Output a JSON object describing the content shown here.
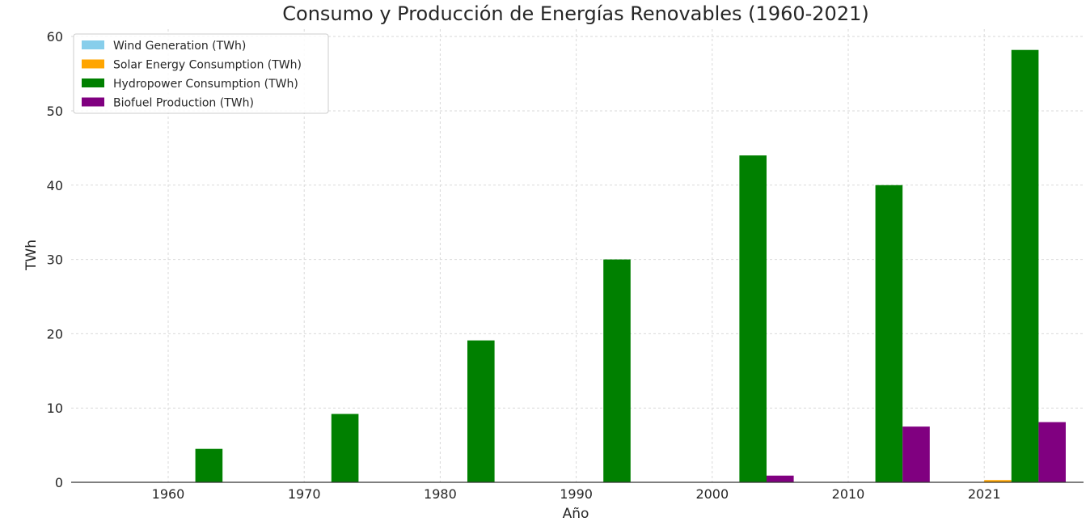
{
  "chart_data": {
    "type": "bar",
    "title": "Consumo y Producción de Energías Renovables (1960-2021)",
    "xlabel": "Año",
    "ylabel": "TWh",
    "ylim": [
      0,
      61
    ],
    "yticks": [
      0,
      10,
      20,
      30,
      40,
      50,
      60
    ],
    "categories": [
      "1960",
      "1970",
      "1980",
      "1990",
      "2000",
      "2010",
      "2021"
    ],
    "grid": true,
    "legend_position": "top-left",
    "series": [
      {
        "name": "Wind Generation (TWh)",
        "color": "#87ceeb",
        "values": [
          0,
          0,
          0,
          0,
          0,
          0,
          0
        ]
      },
      {
        "name": "Solar Energy Consumption (TWh)",
        "color": "#ffa500",
        "values": [
          0,
          0,
          0,
          0,
          0,
          0,
          0.3
        ]
      },
      {
        "name": "Hydropower Consumption (TWh)",
        "color": "#008000",
        "values": [
          4.5,
          9.2,
          19.1,
          30.0,
          44.0,
          40.0,
          58.2
        ]
      },
      {
        "name": "Biofuel Production (TWh)",
        "color": "#800080",
        "values": [
          0,
          0,
          0,
          0,
          0.9,
          7.5,
          8.1
        ]
      }
    ]
  }
}
